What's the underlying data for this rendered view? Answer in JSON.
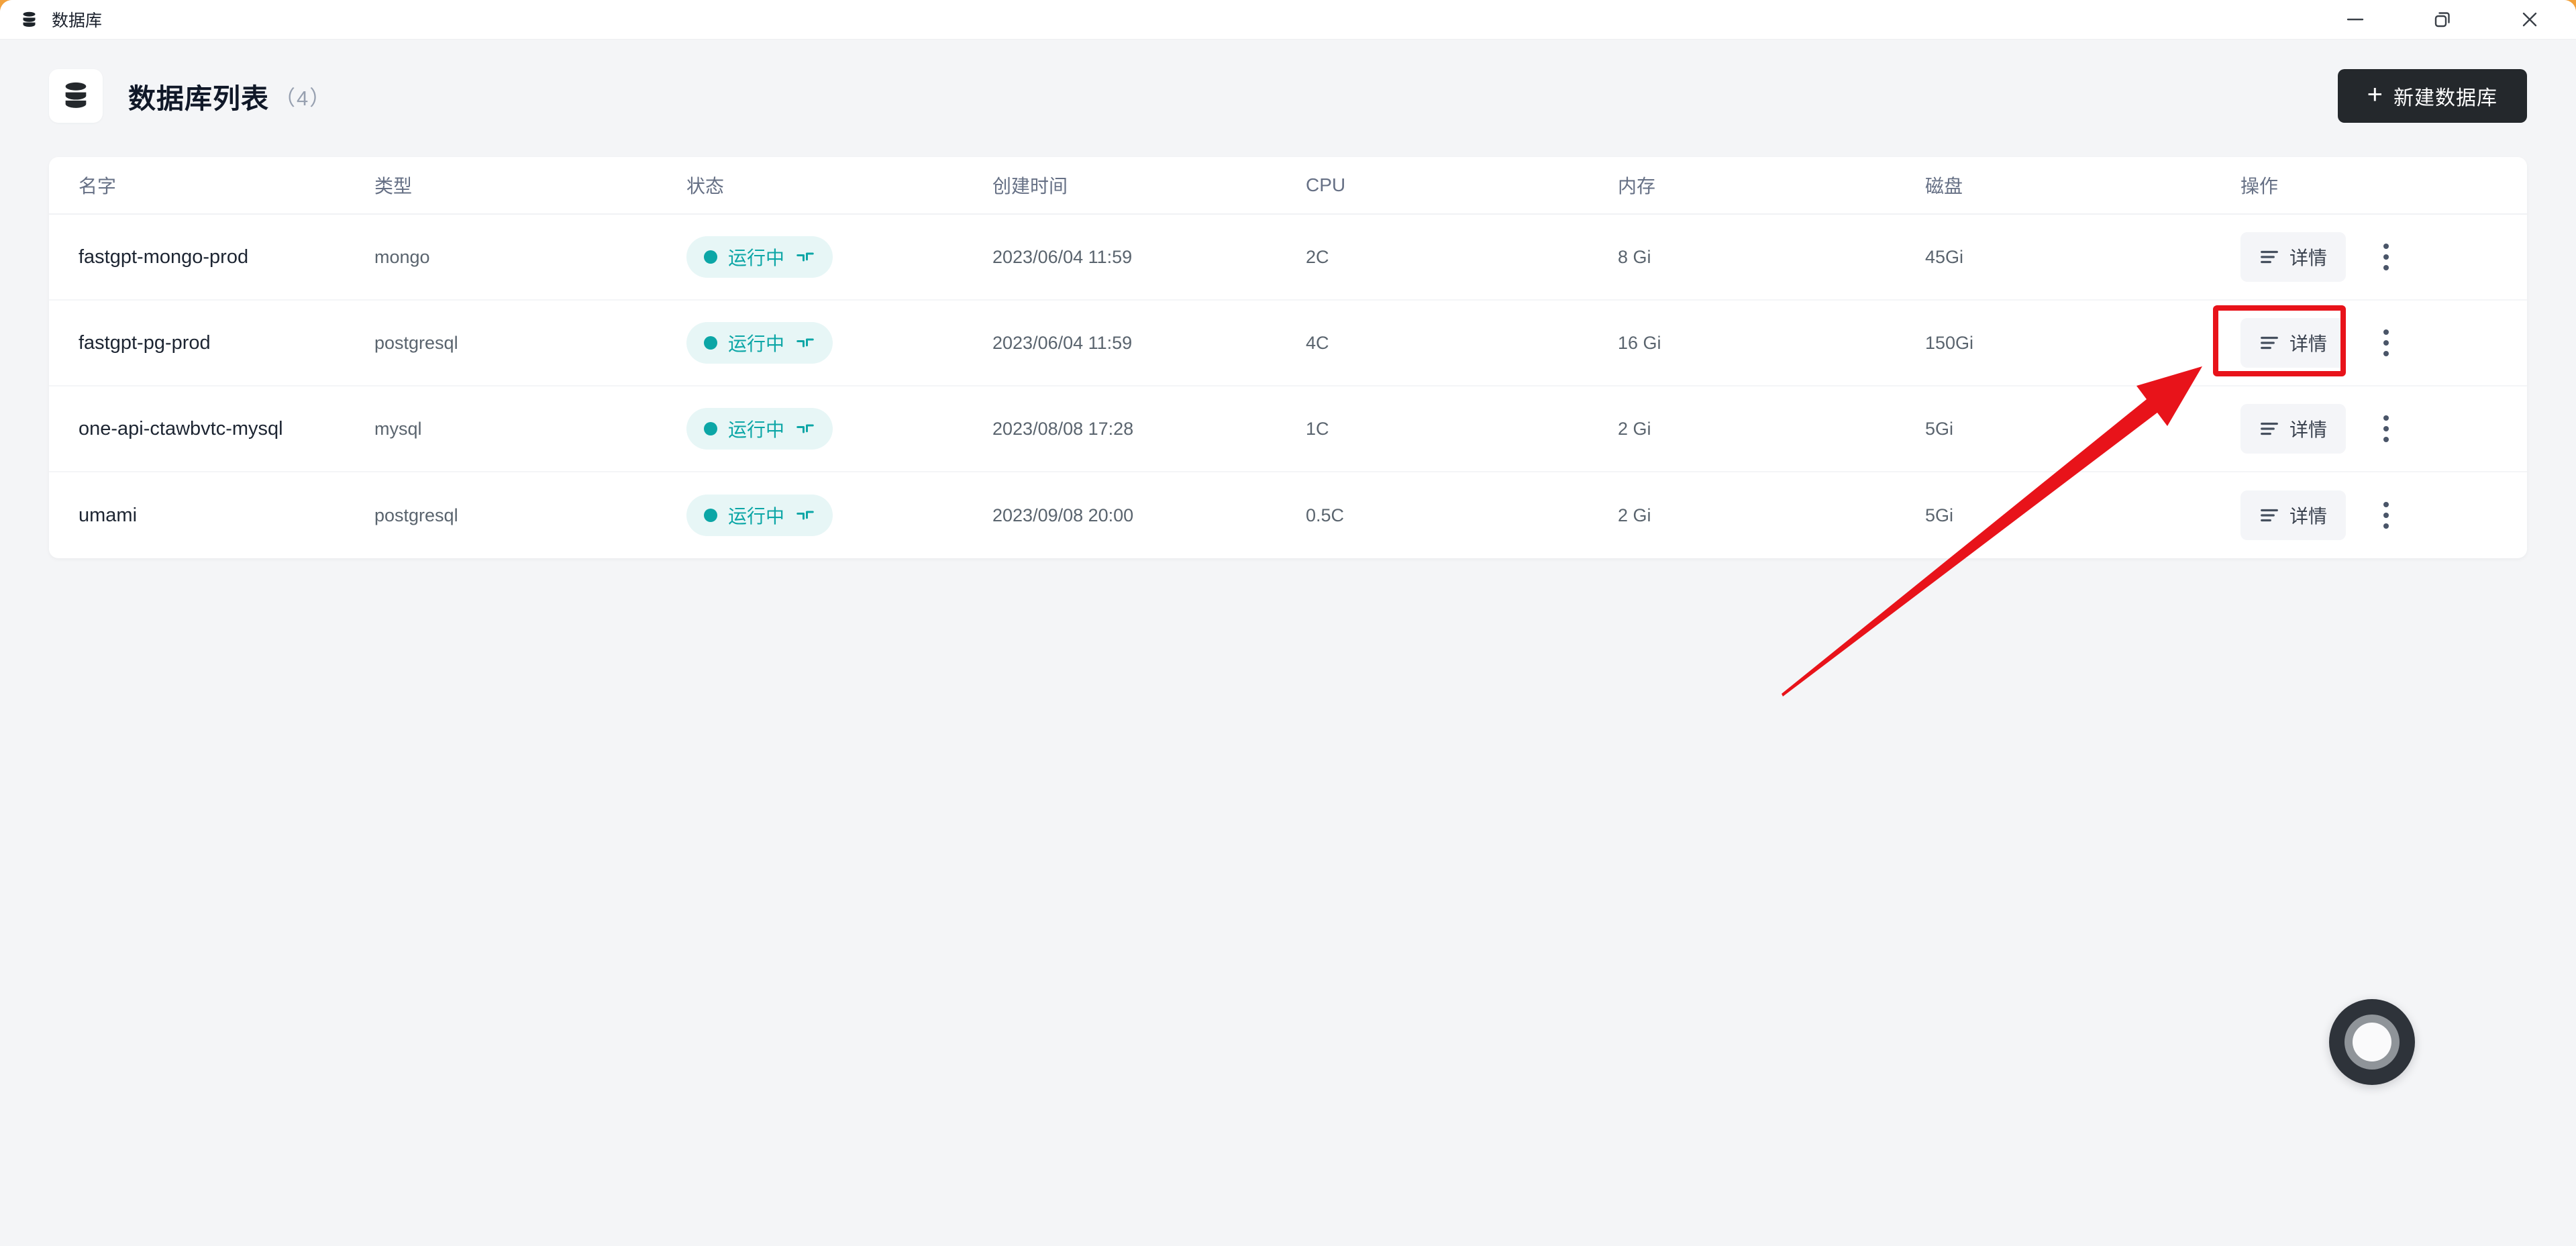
{
  "window": {
    "title": "数据库",
    "controls": {
      "minimize": "minimize",
      "restore": "restore",
      "close": "close"
    }
  },
  "header": {
    "title": "数据库列表",
    "count": "（4）",
    "create_button": {
      "plus": "+",
      "label": "新建数据库"
    }
  },
  "table": {
    "columns": [
      "名字",
      "类型",
      "状态",
      "创建时间",
      "CPU",
      "内存",
      "磁盘",
      "操作"
    ],
    "rows": [
      {
        "name": "fastgpt-mongo-prod",
        "type": "mongo",
        "status": "运行中",
        "created": "2023/06/04 11:59",
        "cpu": "2C",
        "memory": "8 Gi",
        "disk": "45Gi",
        "action": "详情",
        "highlighted": false
      },
      {
        "name": "fastgpt-pg-prod",
        "type": "postgresql",
        "status": "运行中",
        "created": "2023/06/04 11:59",
        "cpu": "4C",
        "memory": "16 Gi",
        "disk": "150Gi",
        "action": "详情",
        "highlighted": true
      },
      {
        "name": "one-api-ctawbvtc-mysql",
        "type": "mysql",
        "status": "运行中",
        "created": "2023/08/08 17:28",
        "cpu": "1C",
        "memory": "2 Gi",
        "disk": "5Gi",
        "action": "详情",
        "highlighted": false
      },
      {
        "name": "umami",
        "type": "postgresql",
        "status": "运行中",
        "created": "2023/09/08 20:00",
        "cpu": "0.5C",
        "memory": "2 Gi",
        "disk": "5Gi",
        "action": "详情",
        "highlighted": false
      }
    ]
  },
  "icons": {
    "app": "database-cylinder",
    "status": "terminal-corners",
    "detail": "list-lines",
    "more": "kebab-vertical",
    "assistant": "concentric-circle"
  },
  "colors": {
    "accent_teal": "#0CA6A6",
    "status_pill_bg": "#E7F6F6",
    "annotation_red": "#E8131A",
    "dark_button": "#24282C",
    "page_bg": "#F4F5F7",
    "card_bg": "#FFFFFF",
    "corner_accent": "#F2A13C"
  }
}
